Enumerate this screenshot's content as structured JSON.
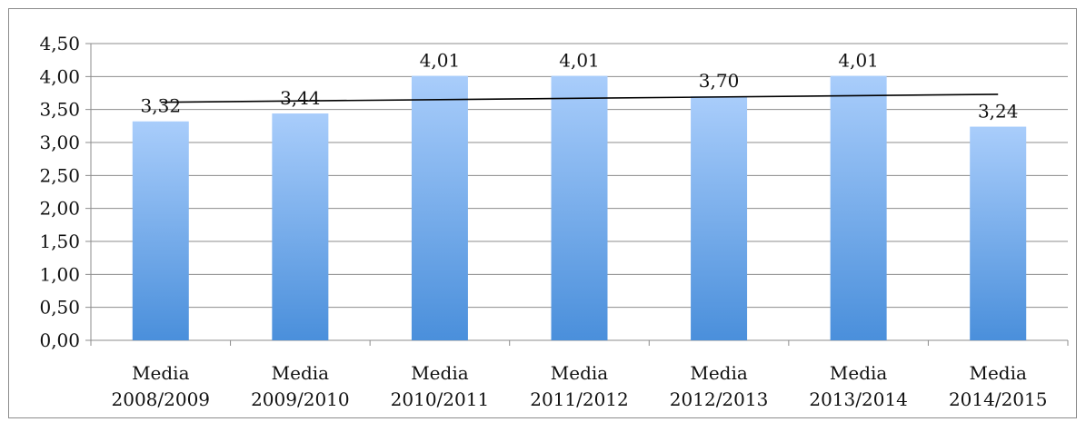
{
  "chart_data": {
    "type": "bar",
    "categories": [
      [
        "Media",
        "2008/2009"
      ],
      [
        "Media",
        "2009/2010"
      ],
      [
        "Media",
        "2010/2011"
      ],
      [
        "Media",
        "2011/2012"
      ],
      [
        "Media",
        "2012/2013"
      ],
      [
        "Media",
        "2013/2014"
      ],
      [
        "Media",
        "2014/2015"
      ]
    ],
    "values": [
      3.32,
      3.44,
      4.01,
      4.01,
      3.7,
      4.01,
      3.24
    ],
    "data_labels": [
      "3,32",
      "3,44",
      "4,01",
      "4,01",
      "3,70",
      "4,01",
      "3,24"
    ],
    "ylim": [
      0,
      4.5
    ],
    "y_ticks": [
      0,
      0.5,
      1,
      1.5,
      2,
      2.5,
      3,
      3.5,
      4,
      4.5
    ],
    "y_tick_labels": [
      "0,00",
      "0,50",
      "1,00",
      "1,50",
      "2,00",
      "2,50",
      "3,00",
      "3,50",
      "4,00",
      "4,50"
    ],
    "grid": true,
    "legend": "none",
    "trendline": {
      "type": "linear",
      "start_value": 3.61,
      "end_value": 3.73
    },
    "title": "",
    "xlabel": "",
    "ylabel": "",
    "colors": {
      "bar_top": "#a9cdfb",
      "bar_bottom": "#4a8fdb",
      "grid": "#8c8c8c",
      "trend": "#000000"
    }
  }
}
